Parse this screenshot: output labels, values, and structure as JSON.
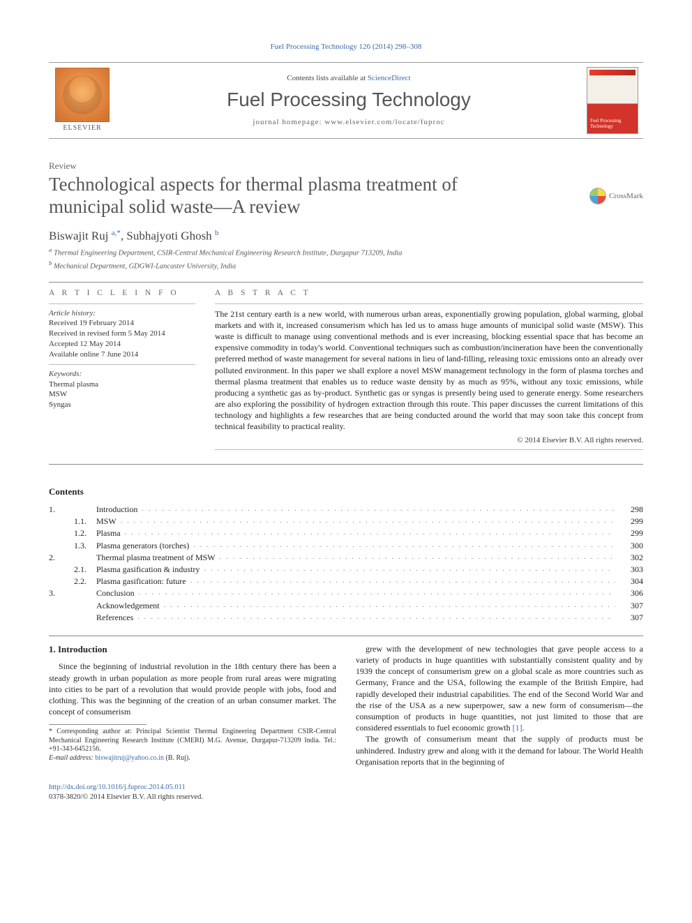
{
  "top_citation_link": "Fuel Processing Technology 126 (2014) 298–308",
  "masthead": {
    "contents_at_prefix": "Contents lists available at ",
    "contents_at_link": "ScienceDirect",
    "journal_name": "Fuel Processing Technology",
    "homepage_line": "journal homepage: www.elsevier.com/locate/fuproc",
    "publisher_word": "ELSEVIER",
    "cover_label": "Fuel Processing Technology"
  },
  "article": {
    "type": "Review",
    "title": "Technological aspects for thermal plasma treatment of municipal solid waste—A review",
    "crossmark_label": "CrossMark",
    "authors_html": "Biswajit Ruj <sup>a,*</sup>, Subhajyoti Ghosh <sup>b</sup>",
    "author1": "Biswajit Ruj",
    "author1_sup": "a,*",
    "author2": "Subhajyoti Ghosh",
    "author2_sup": "b",
    "affiliations": {
      "a": "Thermal Engineering Department, CSIR-Central Mechanical Engineering Research Institute, Durgapur 713209, India",
      "b": "Mechanical Department, GDGWI-Lancaster University, India"
    }
  },
  "article_info": {
    "heading": "A R T I C L E   I N F O",
    "history_label": "Article history:",
    "history": [
      "Received 19 February 2014",
      "Received in revised form 5 May 2014",
      "Accepted 12 May 2014",
      "Available online 7 June 2014"
    ],
    "keywords_label": "Keywords:",
    "keywords": [
      "Thermal plasma",
      "MSW",
      "Syngas"
    ]
  },
  "abstract": {
    "heading": "A B S T R A C T",
    "text": "The 21st century earth is a new world, with numerous urban areas, exponentially growing population, global warming, global markets and with it, increased consumerism which has led us to amass huge amounts of municipal solid waste (MSW). This waste is difficult to manage using conventional methods and is ever increasing, blocking essential space that has become an expensive commodity in today's world. Conventional techniques such as combustion/incineration have been the conventionally preferred method of waste management for several nations in lieu of land-filling, releasing toxic emissions onto an already over polluted environment. In this paper we shall explore a novel MSW management technology in the form of plasma torches and thermal plasma treatment that enables us to reduce waste density by as much as 95%, without any toxic emissions, while producing a synthetic gas as by-product. Synthetic gas or syngas is presently being used to generate energy. Some researchers are also exploring the possibility of hydrogen extraction through this route. This paper discusses the current limitations of this technology and highlights a few researches that are being conducted around the world that may soon take this concept from technical feasibility to practical reality.",
    "copyright": "© 2014 Elsevier B.V. All rights reserved."
  },
  "contents": {
    "heading": "Contents",
    "items": [
      {
        "num": "1.",
        "sub": "",
        "title": "Introduction",
        "page": "298"
      },
      {
        "num": "",
        "sub": "1.1.",
        "title": "MSW",
        "page": "299"
      },
      {
        "num": "",
        "sub": "1.2.",
        "title": "Plasma",
        "page": "299"
      },
      {
        "num": "",
        "sub": "1.3.",
        "title": "Plasma generators (torches)",
        "page": "300"
      },
      {
        "num": "2.",
        "sub": "",
        "title": "Thermal plasma treatment of MSW",
        "page": "302"
      },
      {
        "num": "",
        "sub": "2.1.",
        "title": "Plasma gasification & industry",
        "page": "303"
      },
      {
        "num": "",
        "sub": "2.2.",
        "title": "Plasma gasification: future",
        "page": "304"
      },
      {
        "num": "3.",
        "sub": "",
        "title": "Conclusion",
        "page": "306"
      },
      {
        "num": "",
        "sub": "",
        "title": "Acknowledgement",
        "page": "307"
      },
      {
        "num": "",
        "sub": "",
        "title": "References",
        "page": "307"
      }
    ]
  },
  "intro": {
    "heading": "1. Introduction",
    "p1": "Since the beginning of industrial revolution in the 18th century there has been a steady growth in urban population as more people from rural areas were migrating into cities to be part of a revolution that would provide people with jobs, food and clothing. This was the beginning of the creation of an urban consumer market. The concept of consumerism",
    "p2_a": "grew with the development of new technologies that gave people access to a variety of products in huge quantities with substantially consistent quality and by 1939 the concept of consumerism grew on a global scale as more countries such as Germany, France and the USA, following the example of the British Empire, had rapidly developed their industrial capabilities. The end of the Second World War and the rise of the USA as a new superpower, saw a new form of consumerism—the consumption of products in huge quantities, not just limited to those that are considered essentials to fuel economic growth ",
    "p2_ref": "[1]",
    "p2_b": ".",
    "p3": "The growth of consumerism meant that the supply of products must be unhindered. Industry grew and along with it the demand for labour. The World Health Organisation reports that in the beginning of"
  },
  "footnote": {
    "star": "* Corresponding author at: Principal Scientist Thermal Engineering Department CSIR-Central Mechanical Engineering Research Institute (CMERI) M.G. Avenue, Durgapur-713209 India. Tel.: +91-343-6452156.",
    "email_label": "E-mail address: ",
    "email": "biswajitruj@yahoo.co.in",
    "email_who": " (B. Ruj)."
  },
  "footer": {
    "doi": "http://dx.doi.org/10.1016/j.fuproc.2014.05.011",
    "issn_line": "0378-3820/© 2014 Elsevier B.V. All rights reserved."
  },
  "colors": {
    "link": "#3a6aa8",
    "text": "#222222",
    "muted": "#666666",
    "rule": "#888888",
    "orange_grad_a": "#f7b66b",
    "orange_grad_b": "#ce6f2e",
    "red": "#d2332a"
  }
}
